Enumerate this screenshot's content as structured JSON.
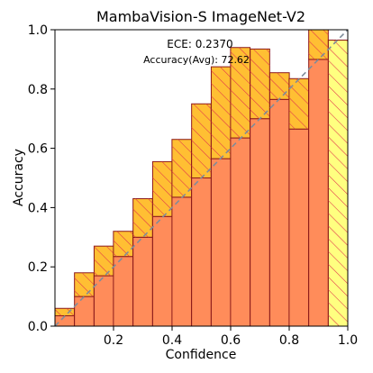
{
  "chart_data": {
    "type": "bar",
    "title": "MambaVision-S  ImageNet-V2",
    "xlabel": "Confidence",
    "ylabel": "Accuracy",
    "xlim": [
      0,
      1
    ],
    "ylim": [
      0,
      1
    ],
    "xticks": [
      "0.2",
      "0.4",
      "0.6",
      "0.8",
      "1.0"
    ],
    "xtick_values": [
      0.2,
      0.4,
      0.6,
      0.8,
      1.0
    ],
    "yticks": [
      "0.0",
      "0.2",
      "0.4",
      "0.6",
      "0.8",
      "1.0"
    ],
    "ytick_values": [
      0.0,
      0.2,
      0.4,
      0.6,
      0.8,
      1.0
    ],
    "bin_width": 0.0667,
    "bins": [
      {
        "x": 0.033,
        "accuracy": 0.035,
        "confidence": 0.06
      },
      {
        "x": 0.1,
        "accuracy": 0.1,
        "confidence": 0.18
      },
      {
        "x": 0.167,
        "accuracy": 0.17,
        "confidence": 0.27
      },
      {
        "x": 0.233,
        "accuracy": 0.235,
        "confidence": 0.32
      },
      {
        "x": 0.3,
        "accuracy": 0.3,
        "confidence": 0.43
      },
      {
        "x": 0.367,
        "accuracy": 0.37,
        "confidence": 0.555
      },
      {
        "x": 0.433,
        "accuracy": 0.435,
        "confidence": 0.63
      },
      {
        "x": 0.5,
        "accuracy": 0.5,
        "confidence": 0.75
      },
      {
        "x": 0.567,
        "accuracy": 0.565,
        "confidence": 0.875
      },
      {
        "x": 0.633,
        "accuracy": 0.635,
        "confidence": 0.94
      },
      {
        "x": 0.7,
        "accuracy": 0.7,
        "confidence": 0.935
      },
      {
        "x": 0.767,
        "accuracy": 0.765,
        "confidence": 0.855
      },
      {
        "x": 0.833,
        "accuracy": 0.665,
        "confidence": 0.835
      },
      {
        "x": 0.9,
        "accuracy": 0.9,
        "confidence": 1.0
      },
      {
        "x": 0.967,
        "accuracy": 0.965,
        "confidence": 0.0
      }
    ],
    "annotations": {
      "ece": "ECE: 0.2370",
      "accuracy_avg": "Accuracy(Avg): 72.62"
    },
    "perfect_calibration_line": true,
    "grid": false,
    "legend": "none",
    "colors": {
      "accuracy_fill": "#ff8c5a",
      "gap_fill": "#ffbf33",
      "under_gap_fill": "#ffff80",
      "edge": "#8b1a1a",
      "hatch": "#e0304a",
      "diagonal": "#7f8c9a"
    }
  }
}
